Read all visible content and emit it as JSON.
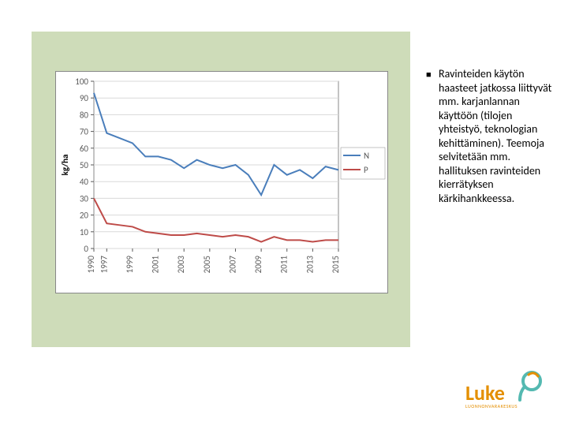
{
  "chart": {
    "type": "line",
    "ylabel": "kg/ha",
    "ylim": [
      0,
      100
    ],
    "ytick_step": 10,
    "background_color": "#ffffff",
    "tick_color": "#d9d9d9",
    "border_color": "#888888",
    "axis_text_color": "#595959",
    "label_fontsize": 11,
    "years": [
      1990,
      1997,
      1998,
      1999,
      2000,
      2001,
      2002,
      2003,
      2004,
      2005,
      2006,
      2007,
      2008,
      2009,
      2010,
      2011,
      2012,
      2013,
      2014,
      2015
    ],
    "xtick_labels": [
      "1990",
      "1997",
      "1999",
      "2001",
      "2003",
      "2005",
      "2007",
      "2009",
      "2011",
      "2013",
      "2015"
    ],
    "series": [
      {
        "name": "N",
        "color": "#4a7ebb",
        "line_width": 2,
        "values": [
          93,
          69,
          66,
          63,
          55,
          55,
          53,
          48,
          53,
          50,
          48,
          50,
          44,
          32,
          50,
          44,
          47,
          42,
          49,
          47
        ]
      },
      {
        "name": "P",
        "color": "#be4b48",
        "line_width": 2,
        "values": [
          30,
          15,
          14,
          13,
          10,
          9,
          8,
          8,
          9,
          8,
          7,
          8,
          7,
          4,
          7,
          5,
          5,
          4,
          5,
          5
        ]
      }
    ]
  },
  "bullet_text": "Ravinteiden käytön haasteet jatkossa liittyvät mm. karjanlannan käyttöön (tilojen yhteistyö, teknologian kehittäminen). Teemoja selvitetään mm. hallituksen ravinteiden kierrätyksen kärkihankkeessa.",
  "logo": {
    "brand": "Luke",
    "sub": "LUONNONVARAKESKUS",
    "color_main": "#e48f00",
    "color_accent": "#54b9b1"
  }
}
